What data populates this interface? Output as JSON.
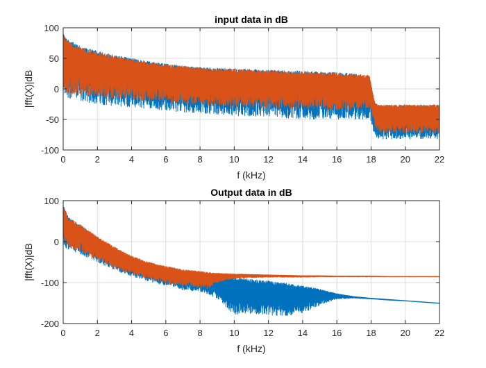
{
  "chart_data": [
    {
      "type": "line",
      "title": "input data in dB",
      "xlabel": "f (kHz)",
      "ylabel": "|fft(X)|dB",
      "xlim": [
        0,
        22
      ],
      "ylim": [
        -100,
        100
      ],
      "xticks": [
        0,
        2,
        4,
        6,
        8,
        10,
        12,
        14,
        16,
        18,
        20,
        22
      ],
      "yticks": [
        -100,
        -50,
        0,
        50,
        100
      ],
      "grid": true,
      "series": [
        {
          "color": "#0072BD",
          "x": [
            0,
            0.3,
            1,
            2,
            3,
            4,
            5,
            6,
            7,
            8,
            9,
            10,
            11,
            12,
            13,
            14,
            15,
            16,
            17,
            17.9,
            18.2,
            18.4,
            19,
            20,
            21,
            22
          ],
          "upper": [
            92,
            80,
            70,
            62,
            55,
            50,
            45,
            41,
            38,
            35,
            34,
            33,
            32,
            31,
            30,
            29,
            28,
            27,
            25,
            22,
            -20,
            -27,
            -27,
            -27,
            -27,
            -27
          ],
          "lower": [
            -10,
            -15,
            -20,
            -25,
            -28,
            -30,
            -33,
            -35,
            -38,
            -40,
            -42,
            -44,
            -45,
            -47,
            -48,
            -49,
            -50,
            -51,
            -51,
            -50,
            -75,
            -82,
            -82,
            -82,
            -82,
            -84
          ]
        },
        {
          "color": "#D95319",
          "x": [
            0,
            0.3,
            1,
            2,
            3,
            4,
            5,
            6,
            7,
            8,
            9,
            10,
            11,
            12,
            13,
            14,
            15,
            16,
            17,
            17.9,
            18.2,
            18.4,
            19,
            20,
            21,
            22
          ],
          "upper": [
            90,
            78,
            68,
            60,
            54,
            48,
            44,
            40,
            37,
            35,
            33,
            32,
            31,
            30,
            29,
            28,
            27,
            26,
            24,
            22,
            -20,
            -26,
            -26,
            -26,
            -26,
            -26
          ],
          "lower": [
            -5,
            -8,
            -10,
            -12,
            -15,
            -17,
            -20,
            -22,
            -24,
            -26,
            -28,
            -29,
            -30,
            -31,
            -32,
            -33,
            -34,
            -35,
            -34,
            -30,
            -60,
            -70,
            -72,
            -72,
            -72,
            -72
          ]
        }
      ]
    },
    {
      "type": "line",
      "title": "Output data in dB",
      "xlabel": "f (kHz)",
      "ylabel": "|fft(X)|dB",
      "xlim": [
        0,
        22
      ],
      "ylim": [
        -200,
        100
      ],
      "xticks": [
        0,
        2,
        4,
        6,
        8,
        10,
        12,
        14,
        16,
        18,
        20,
        22
      ],
      "yticks": [
        -200,
        -100,
        0,
        100
      ],
      "grid": true,
      "series": [
        {
          "color": "#0072BD",
          "x": [
            0,
            0.3,
            1,
            2,
            3,
            4,
            5,
            6,
            7,
            8,
            8.5,
            9,
            9.5,
            10,
            11,
            12,
            13,
            14,
            15,
            16,
            17,
            18,
            19,
            20,
            21,
            22
          ],
          "upper": [
            90,
            60,
            40,
            10,
            -15,
            -38,
            -55,
            -65,
            -73,
            -78,
            -82,
            -86,
            -88,
            -88,
            -92,
            -96,
            -101,
            -108,
            -116,
            -127,
            -134,
            -138,
            -141,
            -144,
            -147,
            -150
          ],
          "lower": [
            -10,
            -20,
            -30,
            -50,
            -70,
            -85,
            -97,
            -107,
            -118,
            -122,
            -128,
            -140,
            -160,
            -178,
            -175,
            -180,
            -182,
            -174,
            -155,
            -140,
            -138,
            -140,
            -143,
            -145,
            -148,
            -151
          ]
        },
        {
          "color": "#D95319",
          "x": [
            0,
            0.3,
            1,
            2,
            3,
            4,
            5,
            6,
            7,
            8,
            8.5,
            9,
            9.5,
            10,
            11,
            12,
            13,
            14,
            15,
            16,
            17,
            18,
            19,
            20,
            21,
            22
          ],
          "upper": [
            88,
            58,
            42,
            12,
            -13,
            -35,
            -50,
            -60,
            -68,
            -72,
            -75,
            -77,
            -78,
            -79,
            -80,
            -81,
            -82,
            -83,
            -83,
            -84,
            -84,
            -84,
            -85,
            -85,
            -85,
            -85
          ],
          "lower": [
            -5,
            -15,
            -25,
            -45,
            -65,
            -80,
            -92,
            -102,
            -108,
            -112,
            -115,
            -100,
            -94,
            -90,
            -88,
            -87,
            -87,
            -87,
            -86,
            -86,
            -86,
            -86,
            -86,
            -86,
            -86,
            -86
          ]
        }
      ]
    }
  ]
}
